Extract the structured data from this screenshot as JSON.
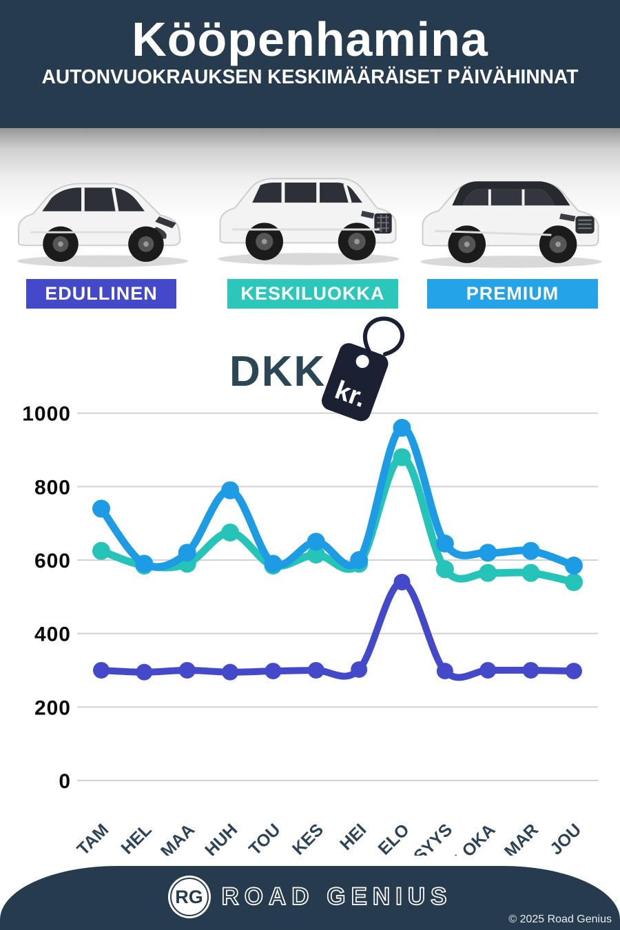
{
  "header": {
    "title": "Kööpenhamina",
    "subtitle": "AUTONVUOKRAUKSEN KESKIMÄÄRÄISET PÄIVÄHINNAT"
  },
  "categories": [
    {
      "label": "EDULLINEN",
      "color": "#4349c8"
    },
    {
      "label": "KESKILUOKKA",
      "color": "#2bc7bb"
    },
    {
      "label": "PREMIUM",
      "color": "#24a3e8"
    }
  ],
  "currency": {
    "code": "DKK",
    "symbol": "kr."
  },
  "chart_data": {
    "type": "line",
    "categories": [
      "TAM",
      "HEL",
      "MAA",
      "HUH",
      "TOU",
      "KES",
      "HEI",
      "ELO",
      "SYYS",
      "LOKA",
      "MAR",
      "JOU"
    ],
    "series": [
      {
        "name": "EDULLINEN",
        "color": "#4349c8",
        "values": [
          300,
          295,
          300,
          295,
          298,
          300,
          302,
          540,
          298,
          300,
          300,
          298
        ]
      },
      {
        "name": "KESKILUOKKA",
        "color": "#26c4b8",
        "values": [
          625,
          585,
          590,
          675,
          585,
          615,
          590,
          880,
          575,
          565,
          565,
          540
        ]
      },
      {
        "name": "PREMIUM",
        "color": "#1d9ce5",
        "values": [
          740,
          590,
          620,
          790,
          590,
          650,
          600,
          960,
          645,
          620,
          625,
          585
        ]
      }
    ],
    "ylim": [
      0,
      1000
    ],
    "yticks": [
      0,
      200,
      400,
      600,
      800,
      1000
    ],
    "grid": true,
    "gridline_color": "#d2d2d2",
    "tick_label_color": "#0a0a0a",
    "month_label_color": "#2e4456",
    "legend_position": "badges-above-chart"
  },
  "footer": {
    "logo_monogram": "RG",
    "brand": "ROAD GENIUS",
    "copyright": "© 2025 Road Genius"
  }
}
